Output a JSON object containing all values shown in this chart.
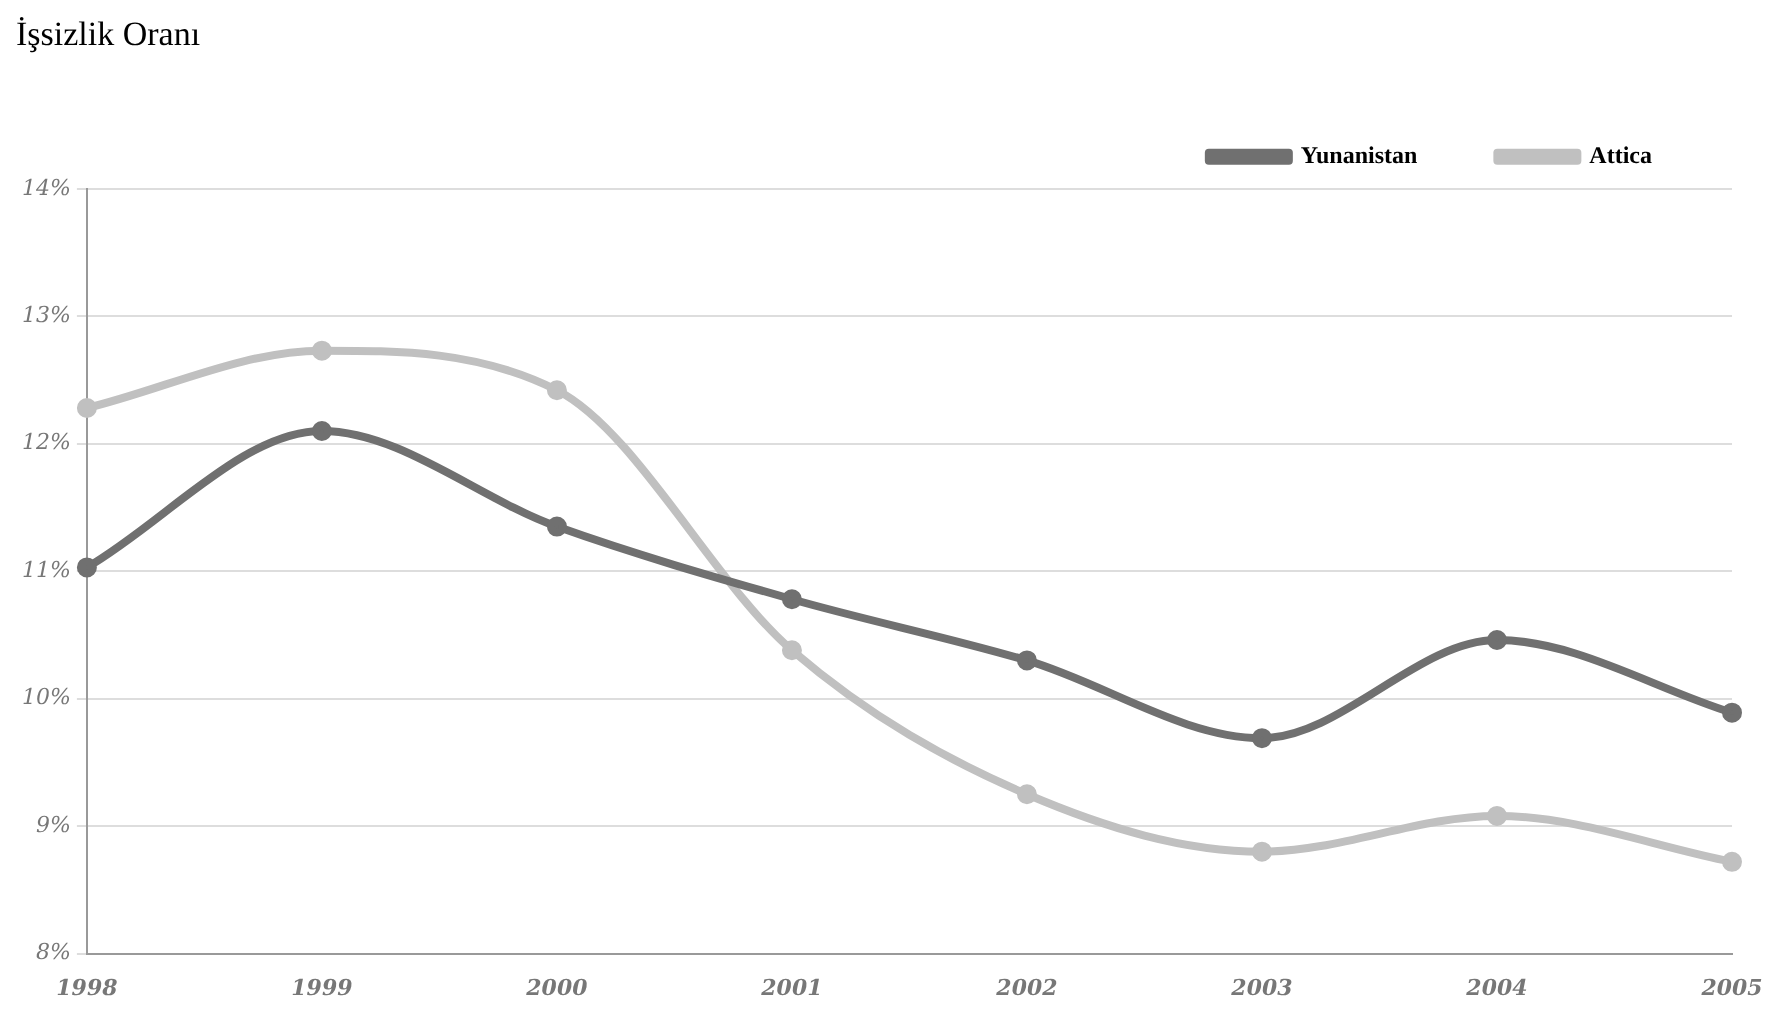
{
  "chart_data": {
    "type": "line",
    "title": "İşsizlik Oranı",
    "categories": [
      "1998",
      "1999",
      "2000",
      "2001",
      "2002",
      "2003",
      "2004",
      "2005"
    ],
    "series": [
      {
        "name": "Yunanistan",
        "color": "#707070",
        "values": [
          11.03,
          12.1,
          11.35,
          10.78,
          10.3,
          9.69,
          10.46,
          9.89
        ]
      },
      {
        "name": "Attica",
        "color": "#c0c0c0",
        "values": [
          12.28,
          12.73,
          12.42,
          10.38,
          9.25,
          8.8,
          9.08,
          8.72
        ]
      }
    ],
    "ylim": [
      8,
      14
    ],
    "yticks": [
      {
        "value": 8,
        "label": "8%"
      },
      {
        "value": 9,
        "label": "9%"
      },
      {
        "value": 10,
        "label": "10%"
      },
      {
        "value": 11,
        "label": "11%"
      },
      {
        "value": 12,
        "label": "12%"
      },
      {
        "value": 13,
        "label": "13%"
      },
      {
        "value": 14,
        "label": "14%"
      }
    ],
    "grid": "y",
    "legend": "top right",
    "marker": "circle",
    "line_style": "solid"
  }
}
